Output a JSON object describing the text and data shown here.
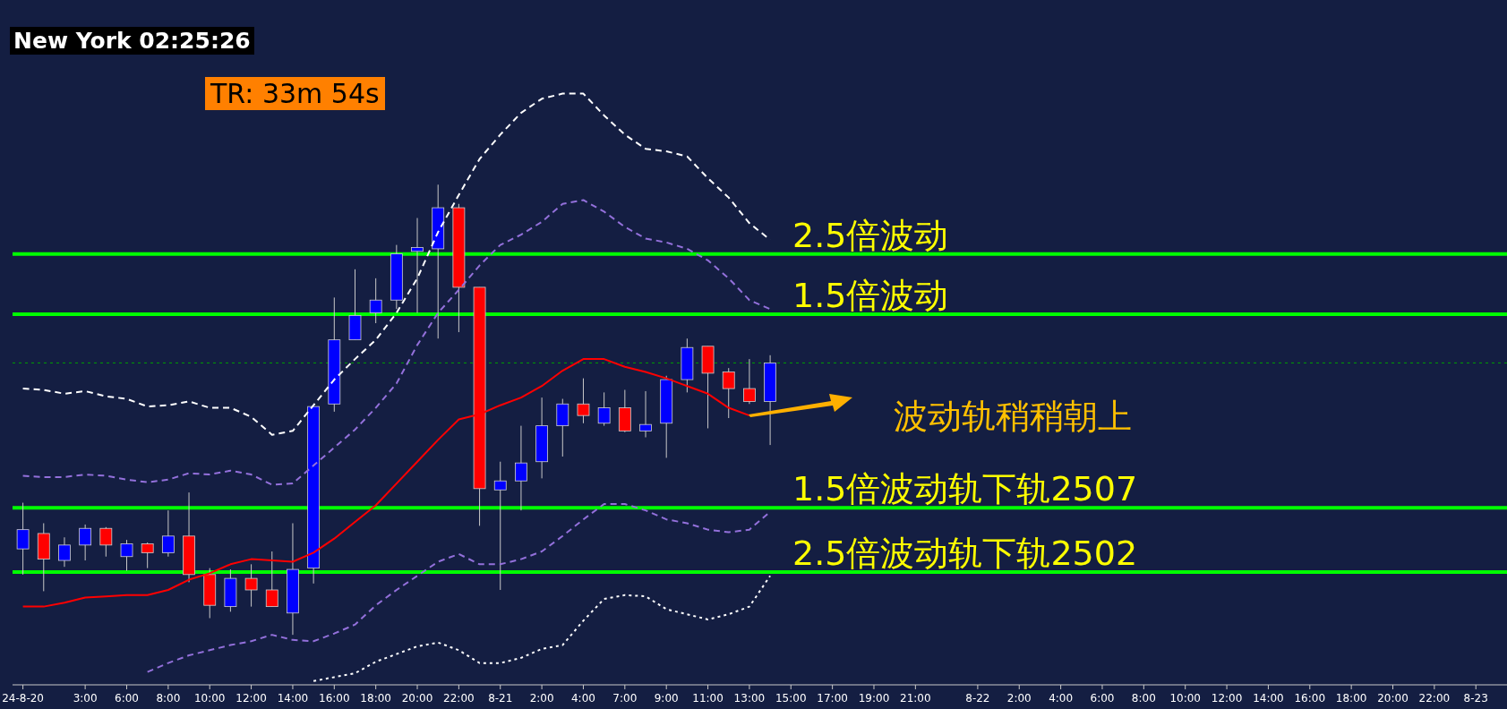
{
  "chart_data": {
    "type": "candlestick",
    "categories": [
      "24-8-20",
      null,
      null,
      "3:00",
      null,
      "6:00",
      null,
      "8:00",
      null,
      "10:00",
      null,
      "12:00",
      null,
      "14:00",
      null,
      "16:00",
      null,
      "18:00",
      null,
      "20:00",
      null,
      "22:00",
      null,
      "8-21",
      null,
      "2:00",
      null,
      "4:00",
      null,
      "7:00",
      null,
      "9:00",
      null,
      "11:00",
      null,
      "13:00",
      null,
      "15:00",
      null,
      "17:00",
      null,
      "19:00",
      null,
      "21:00",
      null,
      null,
      "8-22",
      null,
      "2:00",
      null,
      "4:00",
      null,
      "6:00",
      null,
      "8:00",
      null,
      "10:00",
      null,
      "12:00",
      null,
      "14:00",
      null,
      "16:00",
      null,
      "18:00",
      null,
      "20:00",
      null,
      "22:00",
      null,
      "8-23",
      null
    ],
    "ohlc": [
      [
        2503.8,
        2507.4,
        2501.8,
        2505.3
      ],
      [
        2505.0,
        2505.8,
        2500.5,
        2503.0
      ],
      [
        2502.9,
        2504.7,
        2502.4,
        2504.1
      ],
      [
        2504.1,
        2505.7,
        2502.9,
        2505.4
      ],
      [
        2505.4,
        2505.5,
        2503.2,
        2504.1
      ],
      [
        2503.2,
        2504.5,
        2502.1,
        2504.2
      ],
      [
        2504.2,
        2504.3,
        2502.3,
        2503.5
      ],
      [
        2503.5,
        2506.8,
        2503.2,
        2504.8
      ],
      [
        2504.8,
        2508.2,
        2501.2,
        2501.8
      ],
      [
        2501.8,
        2502.3,
        2498.4,
        2499.4
      ],
      [
        2499.3,
        2502.2,
        2498.9,
        2501.5
      ],
      [
        2501.5,
        2502.6,
        2499.3,
        2500.6
      ],
      [
        2500.6,
        2503.6,
        2499.3,
        2499.3
      ],
      [
        2498.8,
        2505.8,
        2497.1,
        2502.2
      ],
      [
        2502.3,
        2514.9,
        2501.1,
        2514.9
      ],
      [
        2515.1,
        2523.4,
        2514.5,
        2520.1
      ],
      [
        2520.1,
        2525.6,
        2520.1,
        2522.0
      ],
      [
        2522.2,
        2524.9,
        2521.4,
        2523.2
      ],
      [
        2523.2,
        2527.5,
        2522.5,
        2526.8
      ],
      [
        2527.0,
        2529.6,
        2522.2,
        2527.3
      ],
      [
        2527.2,
        2532.2,
        2520.2,
        2530.4
      ],
      [
        2530.4,
        2530.7,
        2520.7,
        2524.2
      ],
      [
        2524.2,
        2524.2,
        2505.6,
        2508.5
      ],
      [
        2508.4,
        2510.6,
        2500.6,
        2509.1
      ],
      [
        2509.1,
        2513.4,
        2506.8,
        2510.5
      ],
      [
        2510.6,
        2515.6,
        2509.3,
        2513.4
      ],
      [
        2513.4,
        2515.5,
        2511.0,
        2515.1
      ],
      [
        2515.1,
        2517.1,
        2513.6,
        2514.2
      ],
      [
        2513.6,
        2516.0,
        2513.4,
        2514.8
      ],
      [
        2514.8,
        2516.2,
        2512.9,
        2513.0
      ],
      [
        2513.0,
        2516.1,
        2512.5,
        2513.5
      ],
      [
        2513.6,
        2517.3,
        2510.9,
        2517.0
      ],
      [
        2517.0,
        2520.2,
        2516.0,
        2519.5
      ],
      [
        2519.6,
        2519.6,
        2513.2,
        2517.5
      ],
      [
        2517.6,
        2517.9,
        2514.0,
        2516.3
      ],
      [
        2516.3,
        2518.6,
        2515.1,
        2515.3
      ],
      [
        2515.3,
        2518.9,
        2511.9,
        2518.3
      ],
      null,
      null,
      null,
      null,
      null,
      null,
      null,
      null,
      null,
      null,
      null,
      null,
      null,
      null,
      null,
      null,
      null,
      null,
      null,
      null,
      null,
      null,
      null,
      null,
      null,
      null,
      null,
      null,
      null,
      null,
      null,
      null,
      null,
      null,
      null
    ],
    "colors": [
      "#0000ff",
      "#ff0000",
      "#0000ff",
      "#0000ff",
      "#ff0000",
      "#0000ff",
      "#ff0000",
      "#0000ff",
      "#ff0000",
      "#ff0000",
      "#0000ff",
      "#ff0000",
      "#ff0000",
      "#0000ff",
      "#0000ff",
      "#0000ff",
      "#0000ff",
      "#0000ff",
      "#0000ff",
      "#0000ff",
      "#0000ff",
      "#ff0000",
      "#ff0000",
      "#0000ff",
      "#0000ff",
      "#0000ff",
      "#0000ff",
      "#ff0000",
      "#0000ff",
      "#ff0000",
      "#0000ff",
      "#0000ff",
      "#0000ff",
      "#ff0000",
      "#ff0000",
      "#ff0000",
      "#0000ff",
      null,
      null,
      null,
      null,
      null,
      null,
      null,
      null,
      null,
      null,
      null,
      null,
      null,
      null,
      null,
      null,
      null,
      null,
      null,
      null,
      null,
      null,
      null,
      null,
      null,
      null,
      null,
      null,
      null,
      null,
      null,
      null,
      null,
      null,
      null
    ],
    "series": [
      {
        "type": "line",
        "color": "#ffffff",
        "line_style": "dashed",
        "values": [
          2516.3,
          2516.2,
          2515.9,
          2516.1,
          2515.7,
          2515.5,
          2514.9,
          2515.0,
          2515.3,
          2514.8,
          2514.8,
          2514.1,
          2512.7,
          2513.0,
          2515.0,
          2517.0,
          2518.6,
          2520.1,
          2522.2,
          2524.9,
          2528.5,
          2531.4,
          2534.2,
          2536.1,
          2537.8,
          2538.9,
          2539.3,
          2539.3,
          2537.6,
          2536.1,
          2535.0,
          2534.8,
          2534.4,
          2532.7,
          2531.2,
          2529.2,
          2527.9,
          null,
          null,
          null,
          null,
          null,
          null,
          null,
          null,
          null,
          null,
          null,
          null,
          null,
          null,
          null,
          null,
          null,
          null,
          null,
          null,
          null,
          null,
          null,
          null,
          null,
          null,
          null,
          null,
          null,
          null,
          null,
          null,
          null,
          null,
          null
        ]
      },
      {
        "type": "line",
        "color": "#9370db",
        "line_style": "dashed",
        "values": [
          2509.5,
          2509.4,
          2509.4,
          2509.6,
          2509.5,
          2509.2,
          2509.0,
          2509.2,
          2509.7,
          2509.6,
          2509.9,
          2509.6,
          2508.8,
          2508.9,
          2510.3,
          2511.7,
          2513.1,
          2514.8,
          2516.7,
          2519.7,
          2522.2,
          2524.0,
          2525.9,
          2527.5,
          2528.3,
          2529.3,
          2530.7,
          2531.0,
          2530.1,
          2528.9,
          2528.0,
          2527.7,
          2527.2,
          2526.3,
          2524.9,
          2523.2,
          2522.5,
          null,
          null,
          null,
          null,
          null,
          null,
          null,
          null,
          null,
          null,
          null,
          null,
          null,
          null,
          null,
          null,
          null,
          null,
          null,
          null,
          null,
          null,
          null,
          null,
          null,
          null,
          null,
          null,
          null,
          null,
          null,
          null,
          null,
          null,
          null
        ]
      },
      {
        "type": "line",
        "color": "#ff0000",
        "line_style": "solid",
        "values": [
          2499.3,
          2499.3,
          2499.6,
          2500.0,
          2500.1,
          2500.2,
          2500.2,
          2500.6,
          2501.4,
          2501.9,
          2502.6,
          2503.0,
          2502.9,
          2502.8,
          2503.5,
          2504.6,
          2505.9,
          2507.2,
          2508.9,
          2510.6,
          2512.3,
          2513.9,
          2514.3,
          2515.0,
          2515.6,
          2516.5,
          2517.7,
          2518.6,
          2518.6,
          2518.0,
          2517.6,
          2517.1,
          2516.5,
          2515.9,
          2514.8,
          2514.2,
          null,
          null,
          null,
          null,
          null,
          null,
          null,
          null,
          null,
          null,
          null,
          null,
          null,
          null,
          null,
          null,
          null,
          null,
          null,
          null,
          null,
          null,
          null,
          null,
          null,
          null,
          null,
          null,
          null,
          null,
          null,
          null,
          null,
          null,
          null,
          null
        ]
      },
      {
        "type": "line",
        "color": "#9370db",
        "line_style": "dashed",
        "values": [
          null,
          null,
          null,
          null,
          null,
          null,
          2494.2,
          2494.9,
          2495.5,
          2495.9,
          2496.3,
          2496.6,
          2497.1,
          2496.7,
          2496.6,
          2497.2,
          2497.9,
          2499.4,
          2500.6,
          2501.7,
          2502.8,
          2503.4,
          2502.6,
          2502.6,
          2503.0,
          2503.6,
          2504.8,
          2506.1,
          2507.3,
          2507.3,
          2506.8,
          2506.1,
          2505.8,
          2505.3,
          2505.1,
          2505.3,
          2506.7,
          null,
          null,
          null,
          null,
          null,
          null,
          null,
          null,
          null,
          null,
          null,
          null,
          null,
          null,
          null,
          null,
          null,
          null,
          null,
          null,
          null,
          null,
          null,
          null,
          null,
          null,
          null,
          null,
          null,
          null,
          null,
          null,
          null,
          null,
          null
        ]
      },
      {
        "type": "line",
        "color": "#ffffff",
        "line_style": "dotted",
        "values": [
          null,
          null,
          null,
          null,
          null,
          null,
          null,
          null,
          null,
          null,
          null,
          null,
          null,
          null,
          2493.5,
          2493.8,
          2494.1,
          2495.0,
          2495.6,
          2496.2,
          2496.5,
          2495.9,
          2494.9,
          2494.9,
          2495.3,
          2496.0,
          2496.3,
          2498.2,
          2499.9,
          2500.2,
          2500.1,
          2499.1,
          2498.7,
          2498.3,
          2498.7,
          2499.3,
          2501.7,
          null,
          null,
          null,
          null,
          null,
          null,
          null,
          null,
          null,
          null,
          null,
          null,
          null,
          null,
          null,
          null,
          null,
          null,
          null,
          null,
          null,
          null,
          null,
          null,
          null,
          null,
          null,
          null,
          null,
          null,
          null,
          null,
          null,
          null,
          null
        ]
      }
    ],
    "ref_lines": [
      {
        "axis": "y",
        "value": 2526.8,
        "label": "2.5倍波动",
        "color": "#00ff00",
        "line_style": "solid"
      },
      {
        "axis": "y",
        "value": 2522.1,
        "label": "1.5倍波动",
        "color": "#00ff00",
        "line_style": "solid"
      },
      {
        "axis": "y",
        "value": 2518.3,
        "color": "#00a000",
        "line_style": "dotted"
      },
      {
        "axis": "y",
        "value": 2507,
        "label": "1.5倍波动轨下轨2507",
        "color": "#00ff00",
        "line_style": "solid"
      },
      {
        "axis": "y",
        "value": 2502,
        "label": "2.5倍波动轨下轨2502",
        "color": "#00ff00",
        "line_style": "solid"
      }
    ],
    "annotations": [
      "New York 02:25:26",
      "TR: 33m 54s",
      "波动轨稍稍朝上"
    ],
    "ylim": [
      2493.2,
      2546.6
    ],
    "tick_labels": "x"
  }
}
